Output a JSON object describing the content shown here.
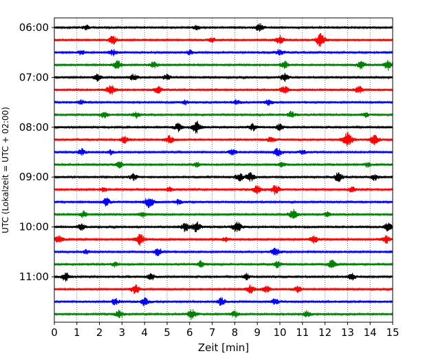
{
  "chart_data": {
    "type": "line",
    "title": "",
    "xlabel": "Zeit  [min]",
    "ylabel": "UTC (Lokalzeit = UTC + 02:00)",
    "xlim": [
      0,
      15
    ],
    "x_ticks": [
      0,
      1,
      2,
      3,
      4,
      5,
      6,
      7,
      8,
      9,
      10,
      11,
      12,
      13,
      14,
      15
    ],
    "y_tick_labels": [
      "06:00",
      "07:00",
      "08:00",
      "09:00",
      "10:00",
      "11:00"
    ],
    "trace_interval_min": 15,
    "start_time": "06:00",
    "grid": "vertical dotted at each minute",
    "colors_cycle": [
      "#000000",
      "#ff0000",
      "#0000ff",
      "#008000"
    ],
    "traces": [
      {
        "time": "06:00",
        "color": "#000000",
        "events": [
          [
            1.4,
            0.3
          ],
          [
            6.3,
            0.3
          ],
          [
            9.1,
            0.5
          ]
        ]
      },
      {
        "time": "06:15",
        "color": "#ff0000",
        "events": [
          [
            2.6,
            0.5
          ],
          [
            7.0,
            0.3
          ],
          [
            10.0,
            0.5
          ],
          [
            11.8,
            0.8
          ]
        ]
      },
      {
        "time": "06:30",
        "color": "#0000ff",
        "events": [
          [
            1.2,
            0.3
          ],
          [
            2.6,
            0.4
          ],
          [
            6.0,
            0.3
          ],
          [
            10.0,
            0.4
          ]
        ]
      },
      {
        "time": "06:45",
        "color": "#008000",
        "events": [
          [
            2.8,
            0.5
          ],
          [
            4.4,
            0.4
          ],
          [
            10.2,
            0.5
          ],
          [
            13.6,
            0.5
          ],
          [
            14.8,
            0.6
          ]
        ]
      },
      {
        "time": "07:00",
        "color": "#000000",
        "events": [
          [
            1.9,
            0.4
          ],
          [
            3.5,
            0.4
          ],
          [
            5.0,
            0.4
          ],
          [
            10.2,
            0.5
          ]
        ]
      },
      {
        "time": "07:15",
        "color": "#ff0000",
        "events": [
          [
            2.5,
            0.6
          ],
          [
            4.6,
            0.5
          ],
          [
            10.2,
            0.5
          ],
          [
            13.5,
            0.5
          ]
        ]
      },
      {
        "time": "07:30",
        "color": "#0000ff",
        "events": [
          [
            1.2,
            0.3
          ],
          [
            5.8,
            0.3
          ],
          [
            8.1,
            0.3
          ],
          [
            9.5,
            0.4
          ]
        ]
      },
      {
        "time": "07:45",
        "color": "#008000",
        "events": [
          [
            2.2,
            0.4
          ],
          [
            3.6,
            0.4
          ],
          [
            10.5,
            0.4
          ],
          [
            13.8,
            0.3
          ]
        ]
      },
      {
        "time": "08:00",
        "color": "#000000",
        "events": [
          [
            5.5,
            0.5
          ],
          [
            6.3,
            0.7
          ],
          [
            8.8,
            0.4
          ],
          [
            10.0,
            0.4
          ]
        ]
      },
      {
        "time": "08:15",
        "color": "#ff0000",
        "events": [
          [
            3.1,
            0.4
          ],
          [
            5.1,
            0.5
          ],
          [
            9.6,
            0.4
          ],
          [
            13.0,
            0.9
          ],
          [
            14.2,
            0.6
          ]
        ]
      },
      {
        "time": "08:30",
        "color": "#0000ff",
        "events": [
          [
            1.2,
            0.4
          ],
          [
            2.5,
            0.3
          ],
          [
            7.9,
            0.4
          ],
          [
            9.9,
            0.5
          ],
          [
            11.0,
            0.3
          ]
        ]
      },
      {
        "time": "08:45",
        "color": "#008000",
        "events": [
          [
            2.9,
            0.4
          ],
          [
            6.3,
            0.3
          ],
          [
            10.1,
            0.3
          ],
          [
            13.9,
            0.3
          ]
        ]
      },
      {
        "time": "09:00",
        "color": "#000000",
        "events": [
          [
            3.5,
            0.4
          ],
          [
            8.2,
            0.5
          ],
          [
            8.7,
            0.5
          ],
          [
            12.6,
            0.6
          ],
          [
            14.2,
            0.4
          ]
        ]
      },
      {
        "time": "09:15",
        "color": "#ff0000",
        "events": [
          [
            2.2,
            0.3
          ],
          [
            5.1,
            0.3
          ],
          [
            9.0,
            0.5
          ],
          [
            9.8,
            0.6
          ],
          [
            13.2,
            0.4
          ]
        ]
      },
      {
        "time": "09:30",
        "color": "#0000ff",
        "events": [
          [
            2.3,
            0.5
          ],
          [
            4.2,
            0.7
          ],
          [
            5.5,
            0.3
          ]
        ]
      },
      {
        "time": "09:45",
        "color": "#008000",
        "events": [
          [
            1.3,
            0.4
          ],
          [
            3.9,
            0.4
          ],
          [
            10.6,
            0.6
          ],
          [
            12.1,
            0.3
          ]
        ]
      },
      {
        "time": "10:00",
        "color": "#000000",
        "events": [
          [
            1.2,
            0.4
          ],
          [
            5.8,
            0.5
          ],
          [
            6.3,
            0.6
          ],
          [
            8.1,
            0.7
          ],
          [
            14.8,
            0.5
          ]
        ]
      },
      {
        "time": "10:15",
        "color": "#ff0000",
        "events": [
          [
            0.2,
            0.5
          ],
          [
            3.8,
            0.7
          ],
          [
            7.6,
            0.3
          ],
          [
            11.5,
            0.5
          ],
          [
            14.7,
            0.5
          ]
        ]
      },
      {
        "time": "10:30",
        "color": "#0000ff",
        "events": [
          [
            1.4,
            0.3
          ],
          [
            4.6,
            0.5
          ],
          [
            9.8,
            0.5
          ]
        ]
      },
      {
        "time": "10:45",
        "color": "#008000",
        "events": [
          [
            2.7,
            0.3
          ],
          [
            6.5,
            0.4
          ],
          [
            9.9,
            0.4
          ],
          [
            12.3,
            0.5
          ]
        ]
      },
      {
        "time": "11:00",
        "color": "#000000",
        "events": [
          [
            0.5,
            0.5
          ],
          [
            4.3,
            0.4
          ],
          [
            8.5,
            0.4
          ],
          [
            13.2,
            0.4
          ]
        ]
      },
      {
        "time": "11:15",
        "color": "#ff0000",
        "events": [
          [
            3.6,
            0.6
          ],
          [
            8.7,
            0.5
          ],
          [
            9.4,
            0.4
          ],
          [
            10.8,
            0.4
          ]
        ]
      },
      {
        "time": "11:30",
        "color": "#0000ff",
        "events": [
          [
            2.7,
            0.4
          ],
          [
            4.0,
            0.5
          ],
          [
            7.4,
            0.5
          ],
          [
            9.8,
            0.4
          ]
        ]
      },
      {
        "time": "11:45",
        "color": "#008000",
        "events": [
          [
            2.9,
            0.5
          ],
          [
            6.1,
            0.6
          ],
          [
            8.0,
            0.4
          ],
          [
            11.2,
            0.4
          ]
        ]
      }
    ]
  }
}
